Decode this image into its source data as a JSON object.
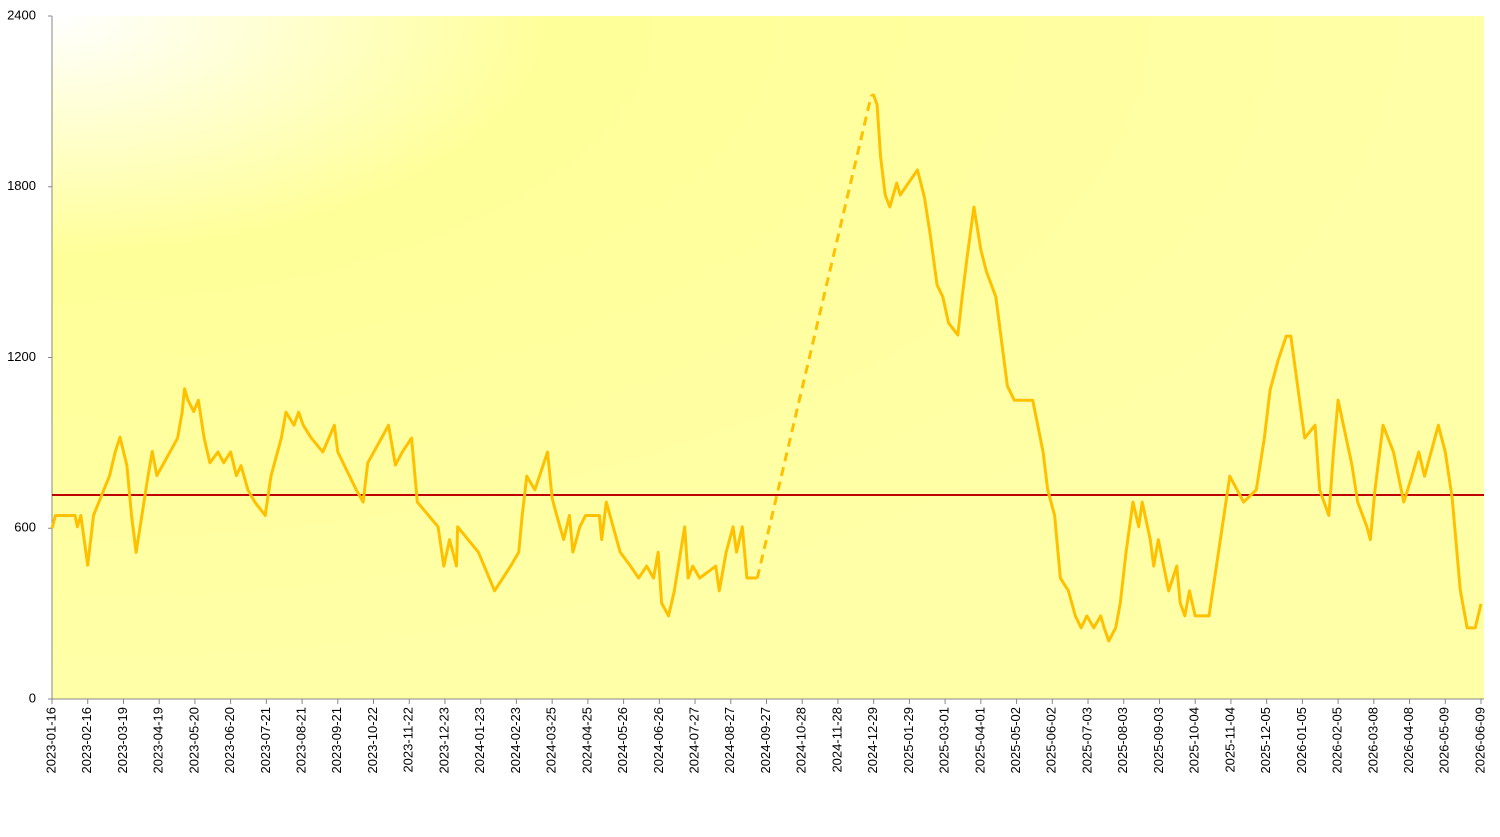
{
  "chart_data": {
    "type": "line",
    "x": [
      "2023-01-16",
      "2023-01-19",
      "2023-02-05",
      "2023-02-07",
      "2023-02-10",
      "2023-02-16",
      "2023-02-21",
      "2023-03-02",
      "2023-03-07",
      "2023-03-12",
      "2023-03-16",
      "2023-03-22",
      "2023-03-26",
      "2023-03-30",
      "2023-04-04",
      "2023-04-09",
      "2023-04-13",
      "2023-04-17",
      "2023-05-05",
      "2023-05-09",
      "2023-05-11",
      "2023-05-14",
      "2023-05-19",
      "2023-05-23",
      "2023-05-28",
      "2023-06-02",
      "2023-06-09",
      "2023-06-14",
      "2023-06-20",
      "2023-06-25",
      "2023-06-29",
      "2023-07-05",
      "2023-07-11",
      "2023-07-20",
      "2023-07-25",
      "2023-08-03",
      "2023-08-07",
      "2023-08-14",
      "2023-08-18",
      "2023-08-22",
      "2023-08-29",
      "2023-09-08",
      "2023-09-18",
      "2023-09-21",
      "2023-10-07",
      "2023-10-13",
      "2023-10-17",
      "2023-10-29",
      "2023-11-04",
      "2023-11-10",
      "2023-11-16",
      "2023-11-24",
      "2023-11-29",
      "2023-12-17",
      "2023-12-22",
      "2023-12-27",
      "2024-01-02",
      "2024-01-03",
      "2024-01-21",
      "2024-02-04",
      "2024-02-18",
      "2024-02-25",
      "2024-02-28",
      "2024-03-03",
      "2024-03-10",
      "2024-03-14",
      "2024-03-21",
      "2024-03-25",
      "2024-03-29",
      "2024-04-04",
      "2024-04-09",
      "2024-04-12",
      "2024-04-18",
      "2024-04-23",
      "2024-05-05",
      "2024-05-07",
      "2024-05-11",
      "2024-05-23",
      "2024-06-01",
      "2024-06-08",
      "2024-06-15",
      "2024-06-21",
      "2024-06-25",
      "2024-06-28",
      "2024-07-04",
      "2024-07-09",
      "2024-07-18",
      "2024-07-21",
      "2024-07-25",
      "2024-07-31",
      "2024-08-14",
      "2024-08-17",
      "2024-08-23",
      "2024-08-29",
      "2024-09-01",
      "2024-09-06",
      "2024-09-10",
      "2024-09-19",
      "2024-11-07",
      "2024-12-27",
      "2024-12-29",
      "2025-01-01",
      "2025-01-04",
      "2025-01-08",
      "2025-01-12",
      "2025-01-18",
      "2025-01-21",
      "2025-02-05",
      "2025-02-11",
      "2025-02-16",
      "2025-02-22",
      "2025-02-27",
      "2025-03-04",
      "2025-03-12",
      "2025-03-16",
      "2025-03-20",
      "2025-03-26",
      "2025-04-01",
      "2025-04-06",
      "2025-04-14",
      "2025-04-24",
      "2025-04-30",
      "2025-05-16",
      "2025-05-25",
      "2025-05-29",
      "2025-06-04",
      "2025-06-09",
      "2025-06-16",
      "2025-06-22",
      "2025-06-27",
      "2025-07-02",
      "2025-07-08",
      "2025-07-14",
      "2025-07-17",
      "2025-07-21",
      "2025-07-27",
      "2025-07-31",
      "2025-08-05",
      "2025-08-11",
      "2025-08-16",
      "2025-08-19",
      "2025-08-26",
      "2025-08-29",
      "2025-09-02",
      "2025-09-11",
      "2025-09-18",
      "2025-09-21",
      "2025-09-25",
      "2025-09-29",
      "2025-10-04",
      "2025-10-11",
      "2025-10-16",
      "2025-11-03",
      "2025-11-15",
      "2025-11-26",
      "2025-12-03",
      "2025-12-08",
      "2025-12-15",
      "2025-12-22",
      "2025-12-26",
      "2026-01-07",
      "2026-01-16",
      "2026-01-20",
      "2026-01-28",
      "2026-02-01",
      "2026-02-05",
      "2026-02-17",
      "2026-02-22",
      "2026-03-02",
      "2026-03-05",
      "2026-03-09",
      "2026-03-16",
      "2026-03-25",
      "2026-04-03",
      "2026-04-10",
      "2026-04-16",
      "2026-04-21",
      "2026-05-03",
      "2026-05-09",
      "2026-05-15",
      "2026-05-22",
      "2026-05-28",
      "2026-06-04",
      "2026-06-09"
    ],
    "series": [
      {
        "color": "#ffc000",
        "values": [
          600,
          645,
          645,
          605,
          645,
          470,
          645,
          735,
          785,
          870,
          920,
          820,
          645,
          515,
          645,
          775,
          870,
          785,
          917,
          1010,
          1090,
          1050,
          1010,
          1050,
          917,
          830,
          868,
          830,
          868,
          785,
          820,
          735,
          692,
          645,
          783,
          917,
          1008,
          962,
          1008,
          962,
          917,
          868,
          962,
          868,
          735,
          692,
          830,
          917,
          962,
          822,
          868,
          917,
          692,
          605,
          467,
          560,
          467,
          605,
          516,
          380,
          467,
          516,
          645,
          783,
          735,
          783,
          868,
          705,
          645,
          560,
          645,
          516,
          605,
          645,
          645,
          560,
          692,
          516,
          467,
          425,
          467,
          425,
          516,
          337,
          292,
          380,
          605,
          425,
          467,
          425,
          467,
          380,
          516,
          605,
          516,
          605,
          425,
          425,
          null,
          2122,
          2122,
          2087,
          1905,
          1771,
          1729,
          1813,
          1771,
          1859,
          1764,
          1634,
          1455,
          1413,
          1321,
          1279,
          1420,
          1550,
          1729,
          1578,
          1500,
          1413,
          1100,
          1050,
          1050,
          868,
          735,
          645,
          425,
          380,
          292,
          250,
          292,
          250,
          292,
          250,
          204,
          250,
          337,
          516,
          692,
          605,
          692,
          560,
          467,
          560,
          380,
          467,
          337,
          292,
          380,
          292,
          292,
          292,
          783,
          692,
          735,
          917,
          1086,
          1191,
          1275,
          1275,
          917,
          962,
          735,
          645,
          868,
          1050,
          822,
          692,
          605,
          560,
          735,
          962,
          868,
          692,
          783,
          868,
          783,
          962,
          868,
          705,
          383,
          250,
          250,
          334
        ]
      }
    ],
    "gap_style": "dashed",
    "reference_line": {
      "value": 717,
      "color": "#c00000"
    },
    "xlim": [
      "2023-01-16",
      "2026-06-09"
    ],
    "xticks": [
      "2023-01-16",
      "2023-02-16",
      "2023-03-19",
      "2023-04-19",
      "2023-05-20",
      "2023-06-20",
      "2023-07-21",
      "2023-08-21",
      "2023-09-21",
      "2023-10-22",
      "2023-11-22",
      "2023-12-23",
      "2024-01-23",
      "2024-02-23",
      "2024-03-25",
      "2024-04-25",
      "2024-05-26",
      "2024-06-26",
      "2024-07-27",
      "2024-08-27",
      "2024-09-27",
      "2024-10-28",
      "2024-11-28",
      "2024-12-29",
      "2025-01-29",
      "2025-03-01",
      "2025-04-01",
      "2025-05-02",
      "2025-06-02",
      "2025-07-03",
      "2025-08-03",
      "2025-09-03",
      "2025-10-04",
      "2025-11-04",
      "2025-12-05",
      "2026-01-05",
      "2026-02-05",
      "2026-03-08",
      "2026-04-08",
      "2026-05-09",
      "2026-06-09"
    ],
    "ylim": [
      0,
      2400
    ],
    "yticks": [
      0,
      600,
      1200,
      1800,
      2400
    ]
  }
}
